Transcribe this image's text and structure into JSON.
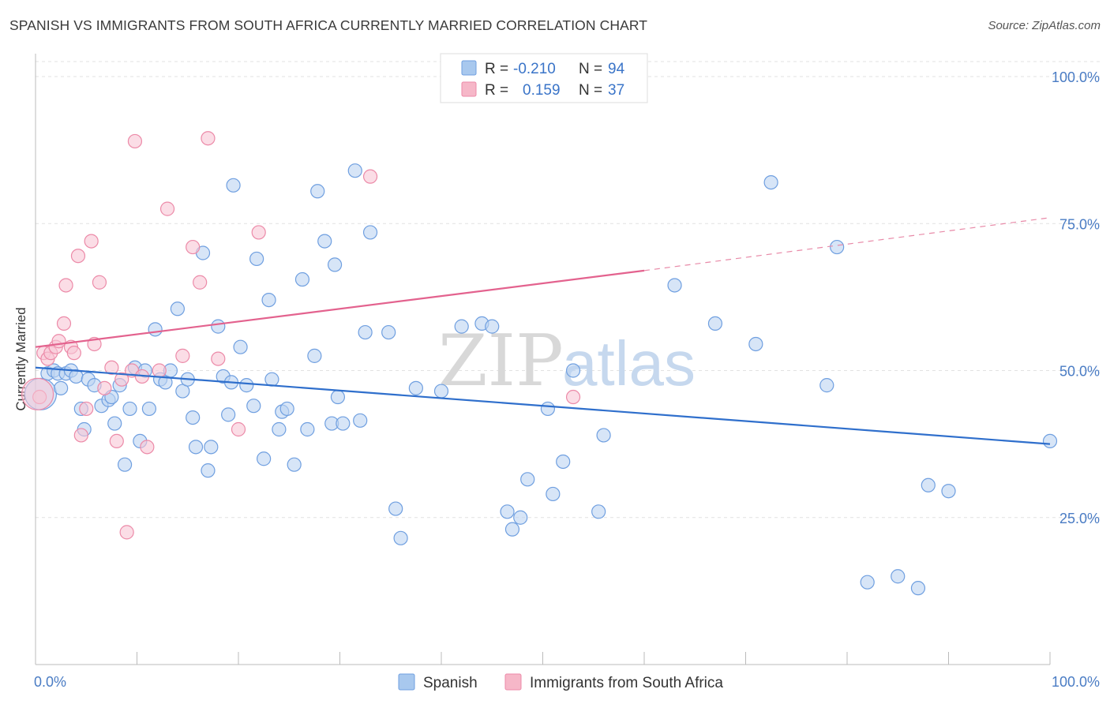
{
  "header": {
    "title": "SPANISH VS IMMIGRANTS FROM SOUTH AFRICA CURRENTLY MARRIED CORRELATION CHART",
    "source": "Source: ZipAtlas.com"
  },
  "watermark": {
    "zip": "ZIP",
    "atlas": "atlas"
  },
  "legend": {
    "rows": [
      {
        "r_label": "R = ",
        "r_value": "-0.210",
        "n_label": "N = ",
        "n_value": "94",
        "color": "#a8c8ee"
      },
      {
        "r_label": "R = ",
        "r_value": "0.159",
        "n_label": "N = ",
        "n_value": "37",
        "color": "#f6b7c8"
      }
    ]
  },
  "bottom_legend": [
    {
      "label": "Spanish",
      "color": "#a8c8ee"
    },
    {
      "label": "Immigrants from South Africa",
      "color": "#f6b7c8"
    }
  ],
  "chart_data": {
    "type": "scatter",
    "title": "SPANISH VS IMMIGRANTS FROM SOUTH AFRICA CURRENTLY MARRIED CORRELATION CHART",
    "xlabel": "",
    "ylabel": "Currently Married",
    "xlim": [
      0,
      100
    ],
    "ylim": [
      0,
      100
    ],
    "x_tick_labels": [
      "0.0%",
      "100.0%"
    ],
    "y_tick_labels": [
      {
        "value": 100,
        "label": "100.0%"
      },
      {
        "value": 75,
        "label": "75.0%"
      },
      {
        "value": 50,
        "label": "50.0%"
      },
      {
        "value": 25,
        "label": "25.0%"
      }
    ],
    "grid": true,
    "series": [
      {
        "name": "Spanish",
        "color": "#6f9fe0",
        "fill": "#bcd4f2",
        "trend": {
          "x0": 0,
          "y0": 50.5,
          "x1": 100,
          "y1": 37.5
        },
        "points": [
          [
            0.5,
            46
          ],
          [
            1.2,
            49.5
          ],
          [
            1.8,
            50
          ],
          [
            2.2,
            49.5
          ],
          [
            2.5,
            47
          ],
          [
            3,
            49.5
          ],
          [
            3.5,
            50
          ],
          [
            4,
            49
          ],
          [
            4.5,
            43.5
          ],
          [
            4.8,
            40
          ],
          [
            5.2,
            48.5
          ],
          [
            5.8,
            47.5
          ],
          [
            6.5,
            44
          ],
          [
            7.2,
            45
          ],
          [
            7.5,
            45.5
          ],
          [
            7.8,
            41
          ],
          [
            8.3,
            47.5
          ],
          [
            8.8,
            34
          ],
          [
            9.3,
            43.5
          ],
          [
            9.8,
            50.5
          ],
          [
            10.3,
            38
          ],
          [
            10.8,
            50
          ],
          [
            11.2,
            43.5
          ],
          [
            11.8,
            57
          ],
          [
            12.3,
            48.5
          ],
          [
            12.8,
            48
          ],
          [
            13.3,
            50
          ],
          [
            14,
            60.5
          ],
          [
            14.5,
            46.5
          ],
          [
            15,
            48.5
          ],
          [
            15.5,
            42
          ],
          [
            15.8,
            37
          ],
          [
            16.5,
            70
          ],
          [
            17,
            33
          ],
          [
            17.3,
            37
          ],
          [
            18,
            57.5
          ],
          [
            18.5,
            49
          ],
          [
            19,
            42.5
          ],
          [
            19.3,
            48
          ],
          [
            19.5,
            81.5
          ],
          [
            20.2,
            54
          ],
          [
            20.8,
            47.5
          ],
          [
            21.5,
            44
          ],
          [
            21.8,
            69
          ],
          [
            22.5,
            35
          ],
          [
            23,
            62
          ],
          [
            23.3,
            48.5
          ],
          [
            24,
            40
          ],
          [
            24.3,
            43
          ],
          [
            24.8,
            43.5
          ],
          [
            25.5,
            34
          ],
          [
            26.3,
            65.5
          ],
          [
            26.8,
            40
          ],
          [
            27.5,
            52.5
          ],
          [
            27.8,
            80.5
          ],
          [
            28.5,
            72
          ],
          [
            29.2,
            41
          ],
          [
            29.5,
            68
          ],
          [
            29.8,
            45.5
          ],
          [
            30.3,
            41
          ],
          [
            31.5,
            84
          ],
          [
            32,
            41.5
          ],
          [
            32.5,
            56.5
          ],
          [
            33,
            73.5
          ],
          [
            34.8,
            56.5
          ],
          [
            35.5,
            26.5
          ],
          [
            36,
            21.5
          ],
          [
            37.5,
            47
          ],
          [
            40,
            46.5
          ],
          [
            42,
            57.5
          ],
          [
            44,
            58
          ],
          [
            45,
            57.5
          ],
          [
            46.5,
            26
          ],
          [
            47,
            23
          ],
          [
            47.8,
            25
          ],
          [
            48.5,
            31.5
          ],
          [
            50.5,
            43.5
          ],
          [
            51,
            29
          ],
          [
            52,
            34.5
          ],
          [
            53,
            50
          ],
          [
            55.5,
            26
          ],
          [
            56,
            39
          ],
          [
            63,
            64.5
          ],
          [
            67,
            58
          ],
          [
            71,
            54.5
          ],
          [
            72.5,
            82
          ],
          [
            78,
            47.5
          ],
          [
            79,
            71
          ],
          [
            82,
            14
          ],
          [
            85,
            15
          ],
          [
            87,
            13
          ],
          [
            88,
            30.5
          ],
          [
            90,
            29.5
          ],
          [
            100,
            38
          ]
        ]
      },
      {
        "name": "Immigrants from South Africa",
        "color": "#ec8aa8",
        "fill": "#f8c6d5",
        "trend": {
          "x0": 0,
          "y0": 54,
          "x1": 60,
          "y1": 67,
          "dash_to_x": 100,
          "dash_to_y": 76
        },
        "points": [
          [
            0.4,
            45.5
          ],
          [
            0.8,
            53
          ],
          [
            1.2,
            52
          ],
          [
            1.5,
            53
          ],
          [
            2,
            54
          ],
          [
            2.3,
            55
          ],
          [
            2.8,
            58
          ],
          [
            3,
            64.5
          ],
          [
            3.5,
            54
          ],
          [
            3.8,
            53
          ],
          [
            4.2,
            69.5
          ],
          [
            4.5,
            39
          ],
          [
            5,
            43.5
          ],
          [
            5.5,
            72
          ],
          [
            5.8,
            54.5
          ],
          [
            6.3,
            65
          ],
          [
            6.8,
            47
          ],
          [
            7.5,
            50.5
          ],
          [
            8,
            38
          ],
          [
            8.5,
            48.5
          ],
          [
            9,
            22.5
          ],
          [
            9.5,
            50
          ],
          [
            9.8,
            89
          ],
          [
            10.5,
            49
          ],
          [
            11,
            37
          ],
          [
            12.2,
            50
          ],
          [
            13,
            77.5
          ],
          [
            14.5,
            52.5
          ],
          [
            15.5,
            71
          ],
          [
            16.2,
            65
          ],
          [
            17,
            89.5
          ],
          [
            18,
            52
          ],
          [
            20,
            40
          ],
          [
            22,
            73.5
          ],
          [
            33,
            83
          ],
          [
            53,
            45.5
          ],
          [
            0.2,
            46
          ]
        ]
      }
    ]
  }
}
